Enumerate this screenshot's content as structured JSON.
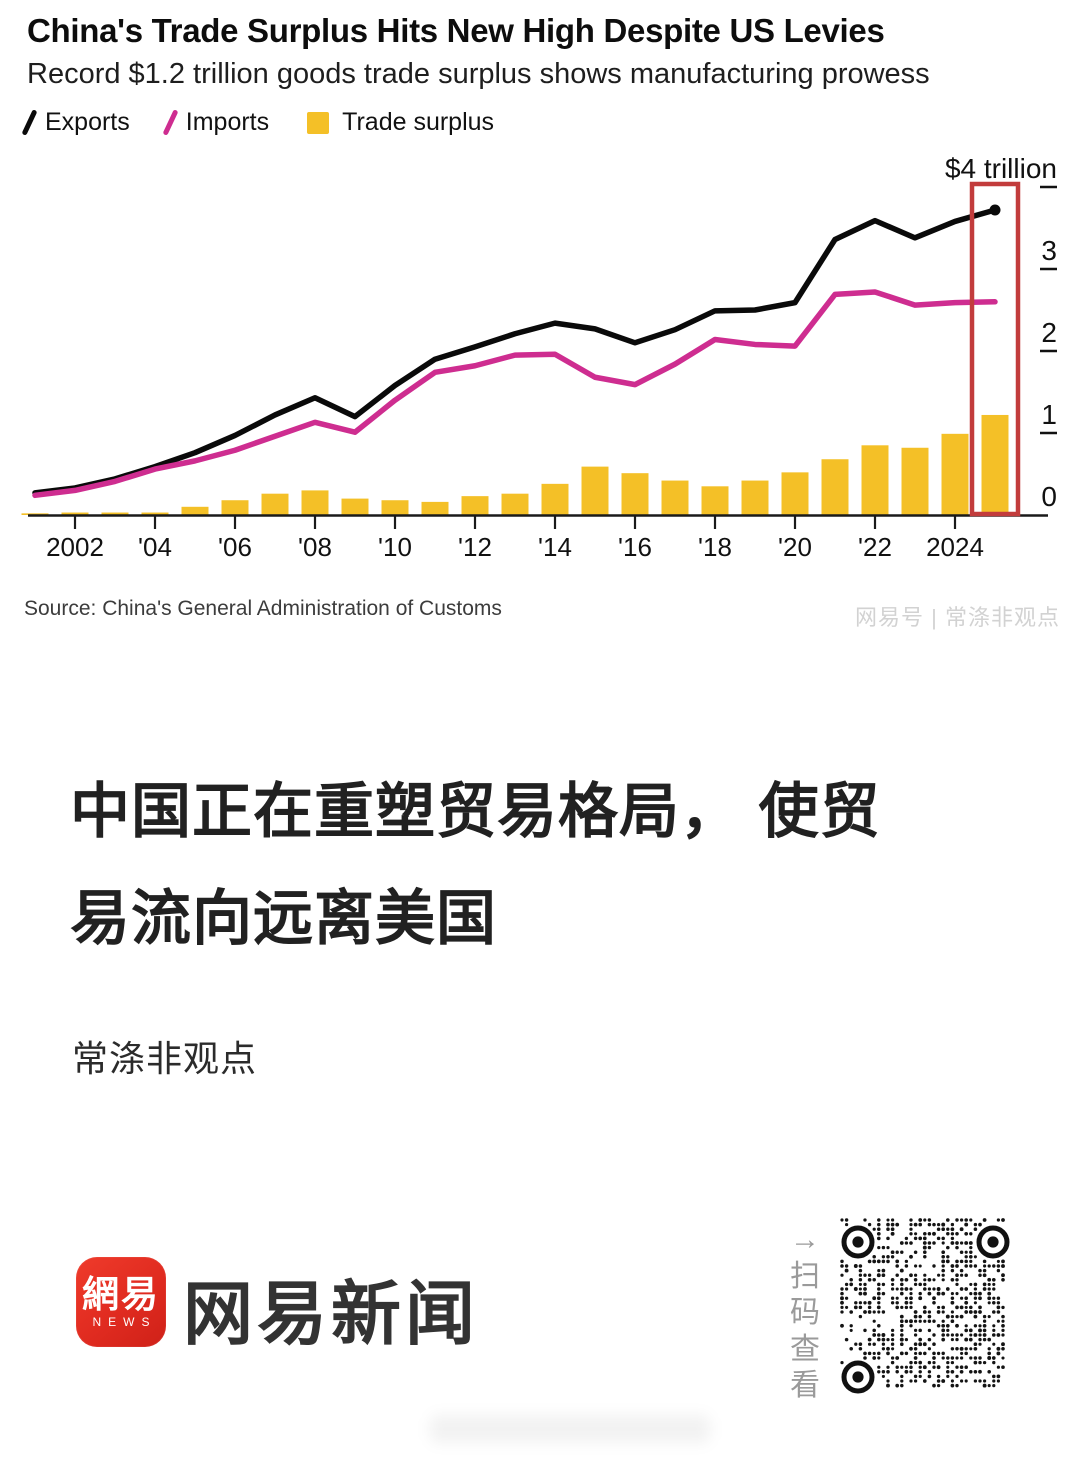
{
  "chart": {
    "title": "China's Trade Surplus Hits New High Despite US Levies",
    "subtitle": "Record $1.2 trillion goods trade surplus shows manufacturing prowess",
    "legend": [
      {
        "label": "Exports",
        "swatch": "line",
        "color": "#0a0a0a"
      },
      {
        "label": "Imports",
        "swatch": "line",
        "color": "#ce2d90"
      },
      {
        "label": "Trade surplus",
        "swatch": "bar",
        "color": "#f4c027"
      }
    ],
    "source": "Source: China's General Administration of Customs",
    "watermark": "网易号 | 常涤非观点"
  },
  "chart_data": {
    "type": "combo",
    "unit": "USD trillion",
    "x": [
      2001,
      2002,
      2003,
      2004,
      2005,
      2006,
      2007,
      2008,
      2009,
      2010,
      2011,
      2012,
      2013,
      2014,
      2015,
      2016,
      2017,
      2018,
      2019,
      2020,
      2021,
      2022,
      2023,
      2024,
      2025
    ],
    "x_tick_years": [
      2002,
      2004,
      2006,
      2008,
      2010,
      2012,
      2014,
      2016,
      2018,
      2020,
      2022,
      2024
    ],
    "x_tick_labels": [
      "2002",
      "'04",
      "'06",
      "'08",
      "'10",
      "'12",
      "'14",
      "'16",
      "'18",
      "'20",
      "'22",
      "2024"
    ],
    "ylim": [
      0,
      4
    ],
    "y_ticks": [
      1,
      2,
      3,
      4
    ],
    "y_tick_labels": {
      "4": "$4 trillion",
      "3": "3",
      "2": "2",
      "1": "1",
      "0": "0"
    },
    "grid": false,
    "legend_position": "top-left",
    "series": [
      {
        "name": "Exports",
        "type": "line",
        "color": "#0a0a0a",
        "end_dot": true,
        "values": [
          0.27,
          0.33,
          0.44,
          0.59,
          0.76,
          0.97,
          1.22,
          1.43,
          1.2,
          1.58,
          1.9,
          2.05,
          2.21,
          2.34,
          2.27,
          2.1,
          2.26,
          2.49,
          2.5,
          2.59,
          3.36,
          3.59,
          3.38,
          3.58,
          3.72
        ]
      },
      {
        "name": "Imports",
        "type": "line",
        "color": "#ce2d90",
        "end_dot": false,
        "values": [
          0.24,
          0.3,
          0.41,
          0.56,
          0.66,
          0.79,
          0.96,
          1.13,
          1.01,
          1.4,
          1.74,
          1.82,
          1.95,
          1.96,
          1.68,
          1.59,
          1.84,
          2.14,
          2.08,
          2.06,
          2.69,
          2.72,
          2.56,
          2.59,
          2.6
        ]
      },
      {
        "name": "Trade surplus",
        "type": "bar",
        "color": "#f4c027",
        "values": [
          0.02,
          0.03,
          0.03,
          0.03,
          0.1,
          0.18,
          0.26,
          0.3,
          0.2,
          0.18,
          0.16,
          0.23,
          0.26,
          0.38,
          0.59,
          0.51,
          0.42,
          0.35,
          0.42,
          0.52,
          0.68,
          0.85,
          0.82,
          0.99,
          1.22
        ]
      }
    ],
    "highlight": {
      "year": 2025,
      "color": "#c23c3c"
    }
  },
  "article": {
    "headline_line1": "中国正在重塑贸易格局， 使贸",
    "headline_line2": "易流向远离美国",
    "author": "常涤非观点"
  },
  "footer": {
    "logo_chars": "網易",
    "logo_caption": "NEWS",
    "brand_name": "网易新闻",
    "qr": {
      "chars": [
        "→",
        "扫",
        "码",
        "查",
        "看"
      ]
    }
  }
}
